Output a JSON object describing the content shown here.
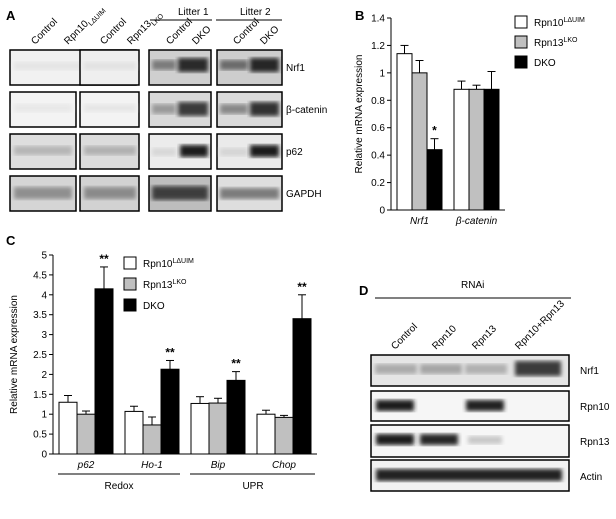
{
  "panels": {
    "A": {
      "label": "A",
      "litters": [
        "Litter 1",
        "Litter 2"
      ],
      "lanes_group1": [
        "Control",
        "Rpn10"
      ],
      "lanes_group1_sup": [
        "",
        "LΔUIM"
      ],
      "lanes_group2": [
        "Control",
        "Rpn13"
      ],
      "lanes_group2_sup": [
        "",
        "LKO"
      ],
      "lanes_group3": [
        "Control",
        "DKO"
      ],
      "lanes_group4": [
        "Control",
        "DKO"
      ],
      "blots": [
        "Nrf1",
        "β-catenin",
        "p62",
        "GAPDH"
      ]
    },
    "B": {
      "label": "B"
    },
    "C": {
      "label": "C",
      "groups": [
        "Redox",
        "UPR"
      ]
    },
    "D": {
      "label": "D",
      "header": "RNAi",
      "lanes": [
        "Control",
        "Rpn10",
        "Rpn13",
        "Rpn10+Rpn13"
      ],
      "blots": [
        "Nrf1",
        "Rpn10",
        "Rpn13",
        "Actin"
      ]
    }
  },
  "chart_data": [
    {
      "panel": "B",
      "type": "bar",
      "categories": [
        "Nrf1",
        "β-catenin"
      ],
      "ylabel": "Relative mRNA expression",
      "ylim": [
        0,
        1.4
      ],
      "yticks": [
        0,
        0.2,
        0.4,
        0.6,
        0.8,
        1,
        1.2,
        1.4
      ],
      "legend_position": "right",
      "series": [
        {
          "name": "Rpn10",
          "name_sup": "LΔUIM",
          "color": "#ffffff",
          "values": [
            1.14,
            0.88
          ],
          "errors": [
            0.06,
            0.06
          ]
        },
        {
          "name": "Rpn13",
          "name_sup": "LKO",
          "color": "#c0c0c0",
          "values": [
            1.0,
            0.88
          ],
          "errors": [
            0.09,
            0.03
          ]
        },
        {
          "name": "DKO",
          "name_sup": "",
          "color": "#000000",
          "values": [
            0.44,
            0.88
          ],
          "errors": [
            0.08,
            0.13
          ]
        }
      ],
      "annotations": [
        {
          "category": 0,
          "series": 2,
          "text": "*"
        }
      ]
    },
    {
      "panel": "C",
      "type": "bar",
      "categories": [
        "p62",
        "Ho-1",
        "Bip",
        "Chop"
      ],
      "ylabel": "Relative mRNA expression",
      "ylim": [
        0,
        5
      ],
      "yticks": [
        0,
        0.5,
        1,
        1.5,
        2,
        2.5,
        3,
        3.5,
        4,
        4.5,
        5
      ],
      "legend_position": "top-center",
      "series": [
        {
          "name": "Rpn10",
          "name_sup": "LΔUIM",
          "color": "#ffffff",
          "values": [
            1.3,
            1.07,
            1.27,
            1.0
          ],
          "errors": [
            0.17,
            0.13,
            0.17,
            0.1
          ]
        },
        {
          "name": "Rpn13",
          "name_sup": "LKO",
          "color": "#c0c0c0",
          "values": [
            1.0,
            0.73,
            1.28,
            0.92
          ],
          "errors": [
            0.08,
            0.2,
            0.12,
            0.05
          ]
        },
        {
          "name": "DKO",
          "name_sup": "",
          "color": "#000000",
          "values": [
            4.15,
            2.13,
            1.85,
            3.4
          ],
          "errors": [
            0.55,
            0.22,
            0.22,
            0.6
          ]
        }
      ],
      "annotations": [
        {
          "category": 0,
          "series": 2,
          "text": "**"
        },
        {
          "category": 1,
          "series": 2,
          "text": "**"
        },
        {
          "category": 2,
          "series": 2,
          "text": "**"
        },
        {
          "category": 3,
          "series": 2,
          "text": "**"
        }
      ]
    }
  ]
}
